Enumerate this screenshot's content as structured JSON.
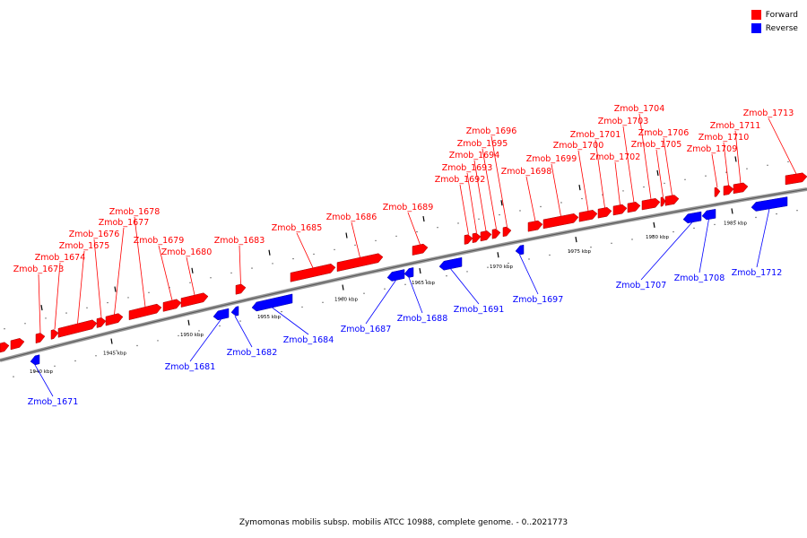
{
  "legend": {
    "forward": {
      "label": "Forward",
      "color": "#ff0000"
    },
    "reverse": {
      "label": "Reverse",
      "color": "#0000ff"
    }
  },
  "footer": "Zymomonas mobilis subsp. mobilis ATCC 10988, complete genome. - 0..2021773",
  "ticks": [
    "1940 kbp",
    "1945 kbp",
    "1950 kbp",
    "1955 kbp",
    "1960 kbp",
    "1965 kbp",
    "1970 kbp",
    "1975 kbp",
    "1980 kbp",
    "1985 kbp"
  ],
  "genes": [
    "Zmob_1671",
    "Zmob_1673",
    "Zmob_1674",
    "Zmob_1675",
    "Zmob_1676",
    "Zmob_1677",
    "Zmob_1678",
    "Zmob_1679",
    "Zmob_1680",
    "Zmob_1681",
    "Zmob_1682",
    "Zmob_1683",
    "Zmob_1684",
    "Zmob_1685",
    "Zmob_1686",
    "Zmob_1687",
    "Zmob_1688",
    "Zmob_1689",
    "Zmob_1691",
    "Zmob_1692",
    "Zmob_1693",
    "Zmob_1694",
    "Zmob_1695",
    "Zmob_1696",
    "Zmob_1697",
    "Zmob_1698",
    "Zmob_1699",
    "Zmob_1700",
    "Zmob_1701",
    "Zmob_1702",
    "Zmob_1703",
    "Zmob_1704",
    "Zmob_1705",
    "Zmob_1706",
    "Zmob_1707",
    "Zmob_1708",
    "Zmob_1709",
    "Zmob_1710",
    "Zmob_1711",
    "Zmob_1712",
    "Zmob_1713"
  ]
}
